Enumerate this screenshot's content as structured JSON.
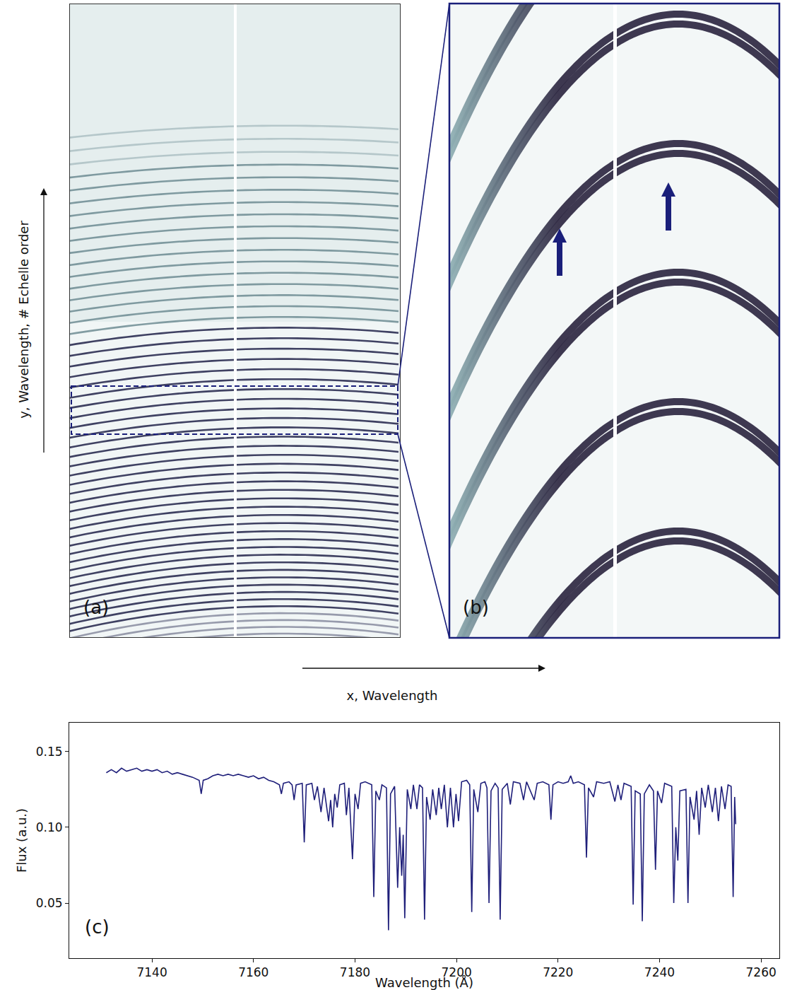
{
  "panels": {
    "a": {
      "label": "(a)"
    },
    "b": {
      "label": "(b)"
    }
  },
  "axis_arrows": {
    "y": "y, Wavelength, # Echelle order",
    "x": "x, Wavelength"
  },
  "chart_data": {
    "type": "line",
    "label": "(c)",
    "x_label": "Wavelength (Å)",
    "y_label": "Flux (a.u.)",
    "color": "#1f1f7a",
    "grid": false,
    "xlim": [
      7123.7,
      7263.6
    ],
    "xticks": [
      7140,
      7160,
      7180,
      7200,
      7220,
      7240,
      7260
    ],
    "ylim": [
      0.0136,
      0.169
    ],
    "yticks": [
      0.05,
      {
        "value": 0.1,
        "label": "0.10"
      },
      0.15
    ],
    "x": [
      7131,
      7132,
      7133,
      7134,
      7135,
      7136,
      7137,
      7138,
      7139,
      7140,
      7141,
      7142,
      7143,
      7144,
      7145,
      7146,
      7147,
      7148,
      7149.3,
      7149.7,
      7150.1,
      7151,
      7152,
      7153,
      7154,
      7155,
      7156,
      7157,
      7158,
      7159,
      7160,
      7161,
      7162,
      7163,
      7164,
      7165.1,
      7165.5,
      7165.9,
      7167,
      7167.6,
      7168,
      7168.4,
      7169.6,
      7170,
      7170.4,
      7171.5,
      7172,
      7172.6,
      7173.3,
      7173.9,
      7174.8,
      7175.2,
      7175.6,
      7176,
      7176.5,
      7177,
      7177.9,
      7178.3,
      7178.8,
      7179.5,
      7180,
      7180.6,
      7181.1,
      7182,
      7183.3,
      7183.7,
      7184.1,
      7184.8,
      7185.3,
      7186.2,
      7186.6,
      7187,
      7187.8,
      7188.4,
      7188.8,
      7189.2,
      7189.5,
      7189.8,
      7190.3,
      7191,
      7191.5,
      7192.2,
      7192.7,
      7193.3,
      7193.7,
      7194.1,
      7194.8,
      7195.3,
      7196,
      7196.5,
      7197,
      7197.6,
      7198.2,
      7198.8,
      7199.4,
      7199.9,
      7200.4,
      7201,
      7202,
      7202.6,
      7203,
      7203.4,
      7204.2,
      7204.8,
      7205.6,
      7206,
      7206.4,
      7206.8,
      7207.6,
      7208.2,
      7208.6,
      7209,
      7210,
      7210.6,
      7211.2,
      7212.5,
      7213.2,
      7213.8,
      7215.3,
      7215.9,
      7217,
      7218.2,
      7218.6,
      7219,
      7220,
      7221,
      7222,
      7222.5,
      7223,
      7224,
      7225.2,
      7225.6,
      7226,
      7227,
      7227.6,
      7229,
      7230.2,
      7231.2,
      7231.8,
      7232.4,
      7233,
      7234.4,
      7234.8,
      7235.2,
      7236.2,
      7236.6,
      7237,
      7238,
      7238.8,
      7239.2,
      7239.6,
      7240.4,
      7241,
      7242.4,
      7242.8,
      7243.2,
      7243.6,
      7244,
      7245.2,
      7245.6,
      7246,
      7246.8,
      7247.3,
      7247.8,
      7248.3,
      7249,
      7249.6,
      7250.4,
      7251,
      7251.6,
      7252.2,
      7252.9,
      7253.5,
      7254.1,
      7254.5,
      7254.8,
      7255
    ],
    "values": [
      0.136,
      0.138,
      0.136,
      0.139,
      0.137,
      0.138,
      0.139,
      0.137,
      0.138,
      0.137,
      0.138,
      0.136,
      0.137,
      0.135,
      0.136,
      0.135,
      0.134,
      0.133,
      0.131,
      0.122,
      0.131,
      0.132,
      0.134,
      0.135,
      0.134,
      0.135,
      0.134,
      0.135,
      0.134,
      0.133,
      0.134,
      0.132,
      0.133,
      0.131,
      0.13,
      0.128,
      0.122,
      0.129,
      0.13,
      0.128,
      0.118,
      0.128,
      0.129,
      0.09,
      0.128,
      0.129,
      0.118,
      0.127,
      0.11,
      0.126,
      0.104,
      0.118,
      0.1,
      0.122,
      0.113,
      0.128,
      0.129,
      0.108,
      0.126,
      0.079,
      0.122,
      0.112,
      0.129,
      0.13,
      0.128,
      0.054,
      0.124,
      0.118,
      0.128,
      0.126,
      0.032,
      0.122,
      0.127,
      0.06,
      0.1,
      0.068,
      0.095,
      0.04,
      0.125,
      0.112,
      0.128,
      0.112,
      0.128,
      0.126,
      0.039,
      0.12,
      0.105,
      0.125,
      0.108,
      0.126,
      0.112,
      0.128,
      0.1,
      0.126,
      0.1,
      0.122,
      0.104,
      0.13,
      0.131,
      0.128,
      0.044,
      0.125,
      0.11,
      0.129,
      0.13,
      0.126,
      0.05,
      0.124,
      0.129,
      0.126,
      0.039,
      0.125,
      0.129,
      0.115,
      0.13,
      0.129,
      0.118,
      0.13,
      0.118,
      0.129,
      0.13,
      0.128,
      0.105,
      0.128,
      0.13,
      0.129,
      0.13,
      0.134,
      0.129,
      0.13,
      0.128,
      0.08,
      0.126,
      0.12,
      0.13,
      0.129,
      0.13,
      0.117,
      0.128,
      0.118,
      0.129,
      0.127,
      0.049,
      0.124,
      0.122,
      0.038,
      0.122,
      0.128,
      0.124,
      0.072,
      0.124,
      0.116,
      0.129,
      0.127,
      0.05,
      0.1,
      0.078,
      0.124,
      0.125,
      0.05,
      0.12,
      0.105,
      0.124,
      0.095,
      0.126,
      0.113,
      0.128,
      0.11,
      0.126,
      0.104,
      0.127,
      0.112,
      0.128,
      0.127,
      0.054,
      0.12,
      0.102
    ]
  }
}
